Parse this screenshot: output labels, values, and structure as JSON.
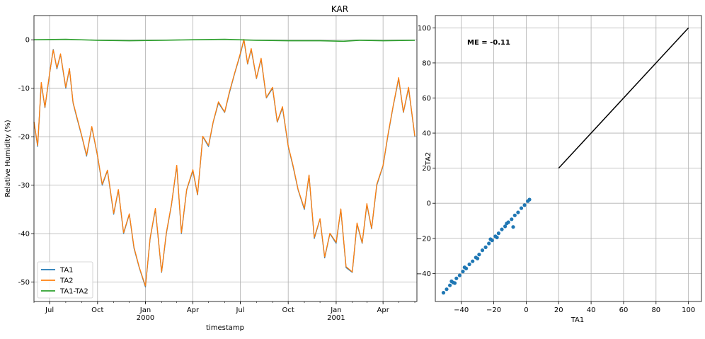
{
  "chart_data": [
    {
      "type": "line",
      "title": "KAR",
      "xlabel": "timestamp",
      "ylabel": "Relative Humidity (%)",
      "ylim": [
        -54,
        5
      ],
      "xlim": [
        "1999-06-01",
        "2001-06-05"
      ],
      "grid": true,
      "legend_position": "lower-left",
      "x_tick_labels": [
        {
          "date": "1999-07-01",
          "label": "Jul",
          "sub": ""
        },
        {
          "date": "1999-10-01",
          "label": "Oct",
          "sub": ""
        },
        {
          "date": "2000-01-01",
          "label": "Jan",
          "sub": "2000"
        },
        {
          "date": "2000-04-01",
          "label": "Apr",
          "sub": ""
        },
        {
          "date": "2000-07-01",
          "label": "Jul",
          "sub": ""
        },
        {
          "date": "2000-10-01",
          "label": "Oct",
          "sub": ""
        },
        {
          "date": "2001-01-01",
          "label": "Jan",
          "sub": "2001"
        },
        {
          "date": "2001-04-01",
          "label": "Apr",
          "sub": ""
        }
      ],
      "y_ticks": [
        0,
        -10,
        -20,
        -30,
        -40,
        -50
      ],
      "series": [
        {
          "name": "TA1",
          "color": "#1f77b4",
          "points": [
            [
              "1999-06-01",
              -17
            ],
            [
              "1999-06-08",
              -22
            ],
            [
              "1999-06-15",
              -9
            ],
            [
              "1999-06-22",
              -14
            ],
            [
              "1999-07-01",
              -7
            ],
            [
              "1999-07-08",
              -2
            ],
            [
              "1999-07-15",
              -6
            ],
            [
              "1999-07-22",
              -3
            ],
            [
              "1999-08-01",
              -10
            ],
            [
              "1999-08-08",
              -6
            ],
            [
              "1999-08-15",
              -13
            ],
            [
              "1999-08-22",
              -16
            ],
            [
              "1999-09-01",
              -20
            ],
            [
              "1999-09-10",
              -24
            ],
            [
              "1999-09-20",
              -18
            ],
            [
              "1999-10-01",
              -24
            ],
            [
              "1999-10-10",
              -30
            ],
            [
              "1999-10-20",
              -27
            ],
            [
              "1999-11-01",
              -36
            ],
            [
              "1999-11-10",
              -31
            ],
            [
              "1999-11-20",
              -40
            ],
            [
              "1999-12-01",
              -36
            ],
            [
              "1999-12-10",
              -43
            ],
            [
              "1999-12-20",
              -47
            ],
            [
              "2000-01-01",
              -51
            ],
            [
              "2000-01-10",
              -41
            ],
            [
              "2000-01-20",
              -35
            ],
            [
              "2000-02-01",
              -48
            ],
            [
              "2000-02-10",
              -40
            ],
            [
              "2000-02-20",
              -34
            ],
            [
              "2000-03-01",
              -26
            ],
            [
              "2000-03-10",
              -40
            ],
            [
              "2000-03-20",
              -31
            ],
            [
              "2000-04-01",
              -27
            ],
            [
              "2000-04-10",
              -32
            ],
            [
              "2000-04-20",
              -20
            ],
            [
              "2000-05-01",
              -22
            ],
            [
              "2000-05-10",
              -17
            ],
            [
              "2000-05-20",
              -13
            ],
            [
              "2000-06-01",
              -15
            ],
            [
              "2000-06-10",
              -11
            ],
            [
              "2000-06-20",
              -7
            ],
            [
              "2000-07-01",
              -3
            ],
            [
              "2000-07-08",
              0
            ],
            [
              "2000-07-15",
              -5
            ],
            [
              "2000-07-22",
              -2
            ],
            [
              "2000-08-01",
              -8
            ],
            [
              "2000-08-10",
              -4
            ],
            [
              "2000-08-20",
              -12
            ],
            [
              "2000-09-01",
              -10
            ],
            [
              "2000-09-10",
              -17
            ],
            [
              "2000-09-20",
              -14
            ],
            [
              "2000-10-01",
              -22
            ],
            [
              "2000-10-10",
              -26
            ],
            [
              "2000-10-20",
              -31
            ],
            [
              "2000-11-01",
              -35
            ],
            [
              "2000-11-10",
              -28
            ],
            [
              "2000-11-20",
              -41
            ],
            [
              "2000-12-01",
              -37
            ],
            [
              "2000-12-10",
              -45
            ],
            [
              "2000-12-20",
              -40
            ],
            [
              "2001-01-01",
              -42
            ],
            [
              "2001-01-10",
              -35
            ],
            [
              "2001-01-20",
              -47
            ],
            [
              "2001-02-01",
              -48
            ],
            [
              "2001-02-10",
              -38
            ],
            [
              "2001-02-20",
              -42
            ],
            [
              "2001-03-01",
              -34
            ],
            [
              "2001-03-10",
              -39
            ],
            [
              "2001-03-20",
              -30
            ],
            [
              "2001-04-01",
              -26
            ],
            [
              "2001-04-10",
              -20
            ],
            [
              "2001-04-20",
              -14
            ],
            [
              "2001-05-01",
              -8
            ],
            [
              "2001-05-10",
              -15
            ],
            [
              "2001-05-20",
              -10
            ],
            [
              "2001-06-01",
              -20
            ]
          ]
        },
        {
          "name": "TA2",
          "color": "#ff7f0e",
          "points": [
            [
              "1999-06-01",
              -16.9
            ],
            [
              "1999-06-08",
              -21.8
            ],
            [
              "1999-06-15",
              -8.8
            ],
            [
              "1999-06-22",
              -13.9
            ],
            [
              "1999-07-01",
              -6.9
            ],
            [
              "1999-07-08",
              -2.1
            ],
            [
              "1999-07-15",
              -5.8
            ],
            [
              "1999-07-22",
              -2.9
            ],
            [
              "1999-08-01",
              -9.8
            ],
            [
              "1999-08-08",
              -5.9
            ],
            [
              "1999-08-15",
              -12.9
            ],
            [
              "1999-08-22",
              -15.8
            ],
            [
              "1999-09-01",
              -19.9
            ],
            [
              "1999-09-10",
              -23.8
            ],
            [
              "1999-09-20",
              -17.9
            ],
            [
              "1999-10-01",
              -23.9
            ],
            [
              "1999-10-10",
              -29.8
            ],
            [
              "1999-10-20",
              -26.9
            ],
            [
              "1999-11-01",
              -35.8
            ],
            [
              "1999-11-10",
              -30.9
            ],
            [
              "1999-11-20",
              -39.8
            ],
            [
              "1999-12-01",
              -35.9
            ],
            [
              "1999-12-10",
              -42.8
            ],
            [
              "1999-12-20",
              -46.9
            ],
            [
              "2000-01-01",
              -50.8
            ],
            [
              "2000-01-10",
              -40.9
            ],
            [
              "2000-01-20",
              -34.8
            ],
            [
              "2000-02-01",
              -47.9
            ],
            [
              "2000-02-10",
              -39.8
            ],
            [
              "2000-02-20",
              -33.9
            ],
            [
              "2000-03-01",
              -25.9
            ],
            [
              "2000-03-10",
              -39.8
            ],
            [
              "2000-03-20",
              -30.9
            ],
            [
              "2000-04-01",
              -26.8
            ],
            [
              "2000-04-10",
              -31.9
            ],
            [
              "2000-04-20",
              -19.9
            ],
            [
              "2000-05-01",
              -21.8
            ],
            [
              "2000-05-10",
              -16.9
            ],
            [
              "2000-05-20",
              -12.8
            ],
            [
              "2000-06-01",
              -14.9
            ],
            [
              "2000-06-10",
              -10.8
            ],
            [
              "2000-06-20",
              -6.9
            ],
            [
              "2000-07-01",
              -2.8
            ],
            [
              "2000-07-08",
              0.1
            ],
            [
              "2000-07-15",
              -4.9
            ],
            [
              "2000-07-22",
              -1.8
            ],
            [
              "2000-08-01",
              -7.9
            ],
            [
              "2000-08-10",
              -3.8
            ],
            [
              "2000-08-20",
              -11.9
            ],
            [
              "2000-09-01",
              -9.8
            ],
            [
              "2000-09-10",
              -16.9
            ],
            [
              "2000-09-20",
              -13.8
            ],
            [
              "2000-10-01",
              -21.9
            ],
            [
              "2000-10-10",
              -25.8
            ],
            [
              "2000-10-20",
              -30.9
            ],
            [
              "2000-11-01",
              -34.8
            ],
            [
              "2000-11-10",
              -27.9
            ],
            [
              "2000-11-20",
              -40.8
            ],
            [
              "2000-12-01",
              -36.9
            ],
            [
              "2000-12-10",
              -44.8
            ],
            [
              "2000-12-20",
              -39.9
            ],
            [
              "2001-01-01",
              -41.8
            ],
            [
              "2001-01-10",
              -34.9
            ],
            [
              "2001-01-20",
              -46.8
            ],
            [
              "2001-02-01",
              -47.9
            ],
            [
              "2001-02-10",
              -37.8
            ],
            [
              "2001-02-20",
              -41.9
            ],
            [
              "2001-03-01",
              -33.8
            ],
            [
              "2001-03-10",
              -38.9
            ],
            [
              "2001-03-20",
              -29.8
            ],
            [
              "2001-04-01",
              -25.9
            ],
            [
              "2001-04-10",
              -19.8
            ],
            [
              "2001-04-20",
              -13.9
            ],
            [
              "2001-05-01",
              -7.8
            ],
            [
              "2001-05-10",
              -14.9
            ],
            [
              "2001-05-20",
              -9.8
            ],
            [
              "2001-06-01",
              -19.9
            ]
          ]
        },
        {
          "name": "TA1-TA2",
          "color": "#2ca02c",
          "points": [
            [
              "1999-06-01",
              0.0
            ],
            [
              "1999-08-01",
              0.1
            ],
            [
              "1999-10-01",
              -0.1
            ],
            [
              "1999-12-01",
              -0.2
            ],
            [
              "2000-02-01",
              -0.1
            ],
            [
              "2000-04-01",
              0.0
            ],
            [
              "2000-06-01",
              0.1
            ],
            [
              "2000-08-01",
              -0.1
            ],
            [
              "2000-10-01",
              -0.2
            ],
            [
              "2000-12-01",
              -0.2
            ],
            [
              "2001-01-15",
              -0.3
            ],
            [
              "2001-02-15",
              -0.1
            ],
            [
              "2001-04-01",
              -0.2
            ],
            [
              "2001-06-01",
              -0.1
            ]
          ]
        }
      ]
    },
    {
      "type": "scatter",
      "title": "",
      "xlabel": "TA1",
      "ylabel": "TA2",
      "xlim": [
        -56,
        108
      ],
      "ylim": [
        -56,
        107
      ],
      "x_ticks": [
        -40,
        -20,
        0,
        20,
        40,
        60,
        80,
        100
      ],
      "y_ticks": [
        -40,
        -20,
        0,
        20,
        40,
        60,
        80,
        100
      ],
      "grid": true,
      "annotation": "ME = -0.11",
      "scatter_color": "#1f77b4",
      "points": [
        [
          -51,
          -51
        ],
        [
          -49,
          -49
        ],
        [
          -47,
          -46.8
        ],
        [
          -45,
          -45.2
        ],
        [
          -43,
          -42.8
        ],
        [
          -41,
          -41.1
        ],
        [
          -39,
          -38.9
        ],
        [
          -37,
          -37.2
        ],
        [
          -35,
          -34.8
        ],
        [
          -33,
          -33.1
        ],
        [
          -31,
          -30.9
        ],
        [
          -29,
          -29.2
        ],
        [
          -27,
          -26.8
        ],
        [
          -25,
          -25.1
        ],
        [
          -23,
          -22.9
        ],
        [
          -21,
          -21.2
        ],
        [
          -19,
          -18.8
        ],
        [
          -17,
          -17.1
        ],
        [
          -15,
          -14.9
        ],
        [
          -13,
          -13.2
        ],
        [
          -11,
          -10.8
        ],
        [
          -9,
          -9.1
        ],
        [
          -7,
          -6.9
        ],
        [
          -5,
          -5.2
        ],
        [
          -3,
          -2.8
        ],
        [
          -1,
          -1.1
        ],
        [
          1,
          1.2
        ],
        [
          2,
          2.1
        ],
        [
          -46,
          -44.5
        ],
        [
          -44,
          -45.5
        ],
        [
          -38,
          -36.5
        ],
        [
          -30,
          -31.5
        ],
        [
          -22,
          -20.5
        ],
        [
          -18,
          -19.5
        ],
        [
          -8,
          -13.5
        ],
        [
          -12,
          -11.5
        ]
      ],
      "reference_line": {
        "x": [
          20,
          100
        ],
        "y": [
          20,
          100
        ],
        "color": "#000000"
      }
    }
  ]
}
